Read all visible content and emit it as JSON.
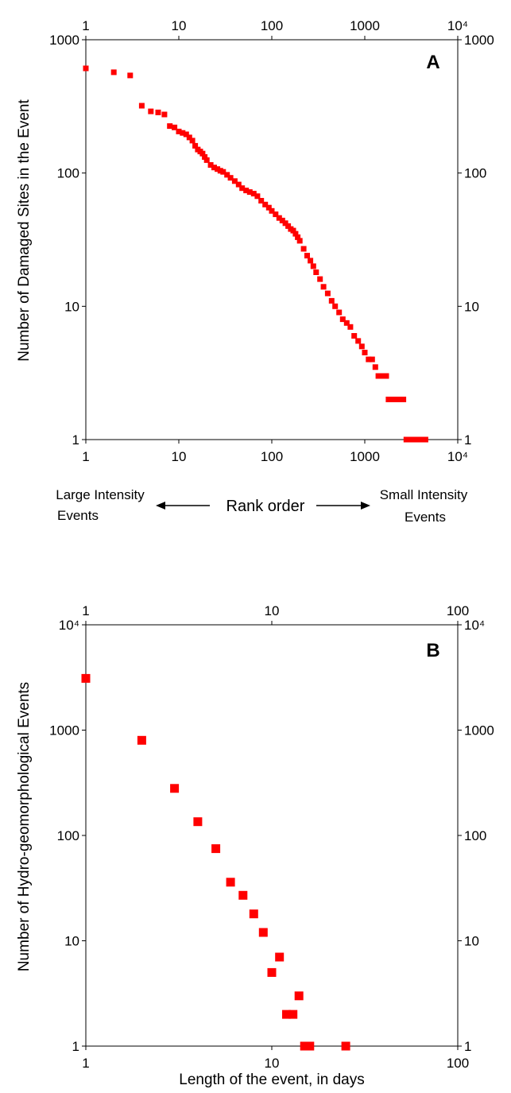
{
  "chart_data": [
    {
      "type": "scatter",
      "panel_label": "A",
      "title": "",
      "ylabel": "Number of Damaged Sites in the Event",
      "xlabel": "Rank order",
      "x_scale": "log",
      "y_scale": "log",
      "xlim": [
        1,
        10000
      ],
      "ylim": [
        1,
        1000
      ],
      "x_ticks": [
        "1",
        "10",
        "100",
        "1000",
        "10⁴"
      ],
      "y_ticks": [
        "1",
        "10",
        "100",
        "1000"
      ],
      "grid": false,
      "marker_color": "#ff0000",
      "rank_order": {
        "left_label_line1": "Large Intensity",
        "left_label_line2": "Events",
        "right_label_line1": "Small Intensity",
        "right_label_line2": "Events"
      },
      "series": [
        {
          "x": [
            1,
            2,
            3,
            4,
            5,
            6,
            7,
            8,
            9,
            10,
            11,
            12,
            13,
            14,
            15,
            16,
            17,
            18,
            19,
            20,
            22,
            24,
            26,
            28,
            30,
            33,
            36,
            40,
            44,
            48,
            53,
            58,
            64,
            70,
            77,
            85,
            93,
            100,
            110,
            120,
            130,
            140,
            150,
            160,
            170,
            180,
            190,
            200,
            220,
            240,
            260,
            280,
            300,
            330,
            360,
            400,
            440,
            480,
            530,
            580,
            640,
            700,
            770,
            850,
            930,
            1000,
            1100,
            1200,
            1300,
            1400,
            1500,
            1600,
            1700,
            1800,
            1900,
            2000,
            2200,
            2400,
            2600,
            2800,
            3000,
            3300,
            3600,
            4000,
            4500
          ],
          "y": [
            610,
            570,
            540,
            320,
            290,
            285,
            275,
            225,
            220,
            205,
            200,
            195,
            185,
            175,
            160,
            150,
            145,
            140,
            132,
            125,
            115,
            110,
            107,
            104,
            102,
            97,
            92,
            87,
            82,
            77,
            74,
            72,
            70,
            67,
            62,
            58,
            55,
            52,
            49,
            46,
            44,
            42,
            40,
            38,
            37,
            35,
            33,
            31,
            27,
            24,
            22,
            20,
            18,
            16,
            14,
            12.5,
            11,
            10,
            9,
            8,
            7.5,
            7,
            6,
            5.5,
            5,
            4.5,
            4,
            4,
            3.5,
            3,
            3,
            3,
            3,
            2,
            2,
            2,
            2,
            2,
            2,
            1,
            1,
            1,
            1,
            1,
            1
          ]
        }
      ]
    },
    {
      "type": "scatter",
      "panel_label": "B",
      "title": "",
      "ylabel": "Number of Hydro-geomorphological Events",
      "xlabel": "Length of the event, in days",
      "x_scale": "log",
      "y_scale": "log",
      "xlim": [
        1,
        100
      ],
      "ylim": [
        1,
        10000
      ],
      "x_ticks": [
        "1",
        "10",
        "100"
      ],
      "y_ticks": [
        "1",
        "10",
        "100",
        "1000",
        "10⁴"
      ],
      "grid": false,
      "marker_color": "#ff0000",
      "series": [
        {
          "x": [
            1,
            2,
            3,
            4,
            5,
            6,
            7,
            8,
            9,
            10,
            11,
            12,
            13,
            14,
            15,
            16,
            25
          ],
          "y": [
            3100,
            800,
            280,
            135,
            75,
            36,
            27,
            18,
            12,
            5,
            7,
            2,
            2,
            3,
            1,
            1,
            1
          ]
        }
      ]
    }
  ]
}
